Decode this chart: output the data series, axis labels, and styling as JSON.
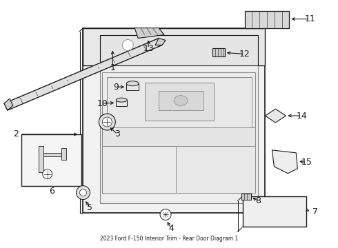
{
  "title": "2023 Ford F-150 Interior Trim - Rear Door Diagram 1",
  "bg_color": "#ffffff",
  "line_color": "#1a1a1a",
  "light_line_color": "#888888",
  "fig_width": 4.9,
  "fig_height": 3.6,
  "dpi": 100
}
